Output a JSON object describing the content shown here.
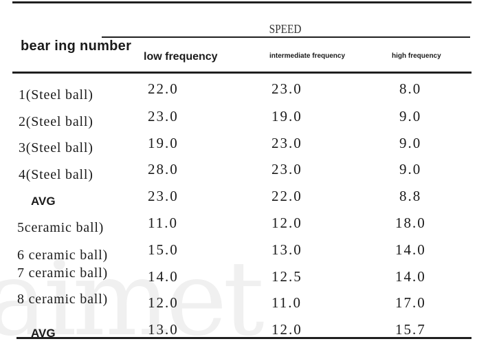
{
  "table": {
    "speed_header": "SPEED",
    "row_header": "bear ing number",
    "columns": [
      "low frequency",
      "intermediate frequency",
      "high frequency"
    ],
    "rows": [
      {
        "label": "1(Steel ball)",
        "low": "22.0",
        "intermediate": "23.0",
        "high": "8.0"
      },
      {
        "label": "2(Steel ball)",
        "low": "23.0",
        "intermediate": "19.0",
        "high": "9.0"
      },
      {
        "label": "3(Steel ball)",
        "low": "19.0",
        "intermediate": "23.0",
        "high": "9.0"
      },
      {
        "label": "4(Steel ball)",
        "low": "28.0",
        "intermediate": "23.0",
        "high": "9.0"
      },
      {
        "label": "AVG",
        "low": "23.0",
        "intermediate": "22.0",
        "high": "8.8"
      },
      {
        "label": "5ceramic ball)",
        "low": "11.0",
        "intermediate": "12.0",
        "high": "18.0"
      },
      {
        "label": "6 ceramic ball)",
        "low": "15.0",
        "intermediate": "13.0",
        "high": "14.0"
      },
      {
        "label": "7 ceramic ball)",
        "low": "14.0",
        "intermediate": "12.5",
        "high": "14.0"
      },
      {
        "label": "8 ceramic ball)",
        "low": "12.0",
        "intermediate": "11.0",
        "high": "17.0"
      },
      {
        "label": "AVG",
        "low": "13.0",
        "intermediate": "12.0",
        "high": "15.7"
      }
    ]
  },
  "watermark": "aimet"
}
